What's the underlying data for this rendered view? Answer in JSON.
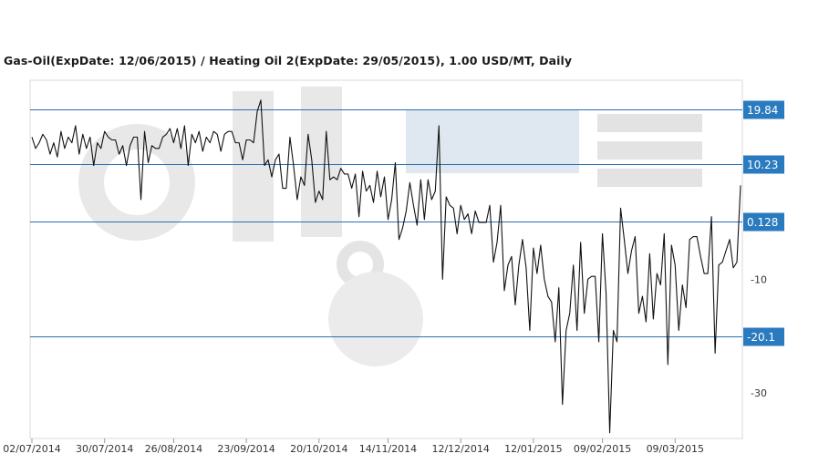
{
  "chart_data": {
    "type": "line",
    "title": "Gas-Oil(ExpDate: 12/06/2015) / Heating Oil 2(ExpDate: 29/05/2015), 1.00 USD/MT, Daily",
    "xlabel": "",
    "ylabel": "",
    "ylim": [
      -38,
      25
    ],
    "x_tick_labels": [
      "02/07/2014",
      "30/07/2014",
      "26/08/2014",
      "23/09/2014",
      "20/10/2014",
      "14/11/2014",
      "12/12/2014",
      "12/01/2015",
      "09/02/2015",
      "09/03/2015"
    ],
    "y_levels": [
      {
        "label": "19.84",
        "value": 19.84
      },
      {
        "label": "10.23",
        "value": 10.23
      },
      {
        "label": "0.128",
        "value": 0.128
      },
      {
        "label": "-20.1",
        "value": -20.1
      }
    ],
    "y_plain_ticks": [
      {
        "label": "-10",
        "value": -10
      },
      {
        "label": "-30",
        "value": -30
      }
    ],
    "colors": {
      "line": "#111111",
      "level_line": "#2a6fb0",
      "level_badge": "#2a7abf",
      "watermark": "#e6e6e6"
    },
    "watermark": "Oil Stat",
    "series": [
      {
        "values": [
          15,
          13,
          14,
          15.5,
          14.5,
          12,
          14,
          11.5,
          16,
          13,
          15,
          14,
          17,
          12,
          15.5,
          13,
          15,
          10,
          14,
          13,
          16,
          15,
          14.5,
          14.5,
          12,
          13.5,
          10,
          13.5,
          15,
          15,
          4,
          16,
          10.5,
          13.5,
          13,
          13,
          15,
          15.5,
          16.5,
          14,
          16.5,
          13,
          17,
          10,
          15.5,
          14,
          16,
          12.5,
          15,
          14,
          16,
          15.5,
          12.5,
          15.5,
          16,
          16,
          14,
          14,
          11,
          14.5,
          14.5,
          14,
          19.5,
          21.5,
          10,
          11,
          8,
          11,
          12,
          6,
          6,
          15,
          10,
          4,
          8,
          6.5,
          15.5,
          11,
          3.5,
          5.5,
          4,
          16,
          7.5,
          8,
          7.5,
          9.5,
          8.5,
          8.5,
          6,
          8.5,
          1,
          9,
          5.5,
          6.5,
          3.5,
          9,
          4.5,
          8,
          0.5,
          4,
          10.5,
          -3,
          -1,
          2,
          7,
          3,
          -0.5,
          7.5,
          0.5,
          7.5,
          4,
          5.5,
          17,
          -10,
          4.5,
          3,
          2.5,
          -2,
          3,
          0.5,
          1.5,
          -2,
          2,
          0,
          0,
          0,
          3,
          -7,
          -3.5,
          3,
          -12,
          -7.5,
          -6,
          -14.5,
          -7.5,
          -3,
          -8,
          -19,
          -4.5,
          -9,
          -4,
          -10,
          -13,
          -14,
          -21,
          -11.5,
          -32,
          -19,
          -16,
          -7.5,
          -19,
          -3.5,
          -16,
          -10,
          -9.5,
          -9.5,
          -21,
          -2,
          -12.5,
          -37,
          -19,
          -21,
          2.5,
          -3,
          -9,
          -5,
          -2.5,
          -16,
          -13,
          -17.5,
          -5.5,
          -17,
          -9,
          -11,
          -2,
          -25,
          -4,
          -7.5,
          -19,
          -11,
          -15,
          -3,
          -2.5,
          -2.5,
          -6,
          -9,
          -9,
          1,
          -23,
          -7.5,
          -7,
          -5,
          -3,
          -8,
          -7,
          6.5
        ]
      }
    ]
  }
}
